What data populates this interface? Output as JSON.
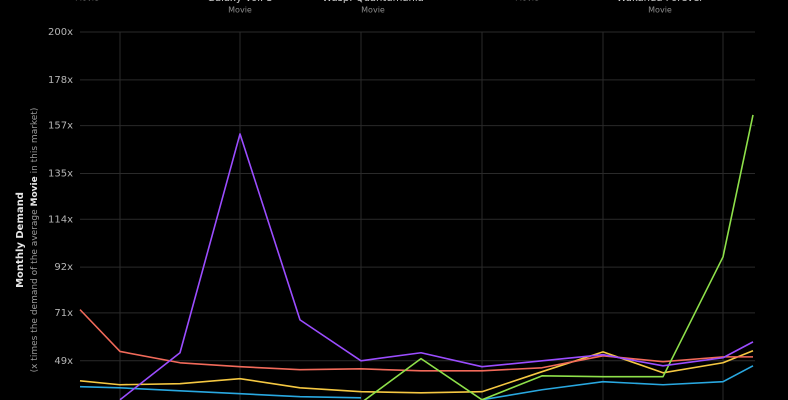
{
  "chart_data": {
    "type": "line",
    "top_labels": [
      {
        "title": null,
        "subtitle": "Movie"
      },
      {
        "title": "Galaxy Vol. 3",
        "subtitle": "Movie"
      },
      {
        "title": "Wasp: Quantumania",
        "subtitle": "Movie"
      },
      {
        "title": null,
        "subtitle": "Movie"
      },
      {
        "title": "Wakanda Forever",
        "subtitle": "Movie"
      }
    ],
    "y_label": "Monthly Demand",
    "y_sublabel_parts": [
      "(x times the demand of the average ",
      "Movie",
      " in this market)"
    ],
    "categories": [
      null,
      null,
      null,
      null,
      null,
      null,
      null,
      null,
      null,
      null,
      null,
      null,
      null
    ],
    "ylim": [
      31,
      200
    ],
    "yticks": [
      {
        "value": 49,
        "label": "49x"
      },
      {
        "value": 71,
        "label": "71x"
      },
      {
        "value": 92,
        "label": "92x"
      },
      {
        "value": 114,
        "label": "114x"
      },
      {
        "value": 135,
        "label": "135x"
      },
      {
        "value": 157,
        "label": "157x"
      },
      {
        "value": 178,
        "label": "178x"
      },
      {
        "value": 200,
        "label": "200x"
      }
    ],
    "grid": true,
    "series": [
      {
        "color": "#29a8e0",
        "values": [
          37.1,
          36.6,
          35.2,
          33.9,
          32.5,
          32,
          null,
          31.1,
          35.7,
          39.4,
          38,
          39.4,
          46.7
        ]
      },
      {
        "color": "#f5c842",
        "values": [
          39.8,
          38,
          38.5,
          40.8,
          36.6,
          34.8,
          34.3,
          34.8,
          44,
          53.1,
          43.5,
          48.1,
          53.6
        ]
      },
      {
        "color": "#f26a5a",
        "values": [
          72.5,
          53.3,
          48.1,
          46.3,
          44.9,
          45.3,
          44.4,
          44.4,
          45.8,
          51.3,
          48.6,
          50.8,
          50.8
        ]
      },
      {
        "color": "#8ee04a",
        "values": [
          null,
          null,
          null,
          null,
          null,
          29.7,
          50,
          31.1,
          42.1,
          41.7,
          41.7,
          96.7,
          161.9
        ]
      },
      {
        "color": "#9b4dff",
        "values": [
          null,
          31.1,
          52.7,
          153.2,
          67.8,
          49,
          52.7,
          46.3,
          49,
          51.8,
          46.7,
          50.4,
          57.7
        ]
      }
    ]
  }
}
